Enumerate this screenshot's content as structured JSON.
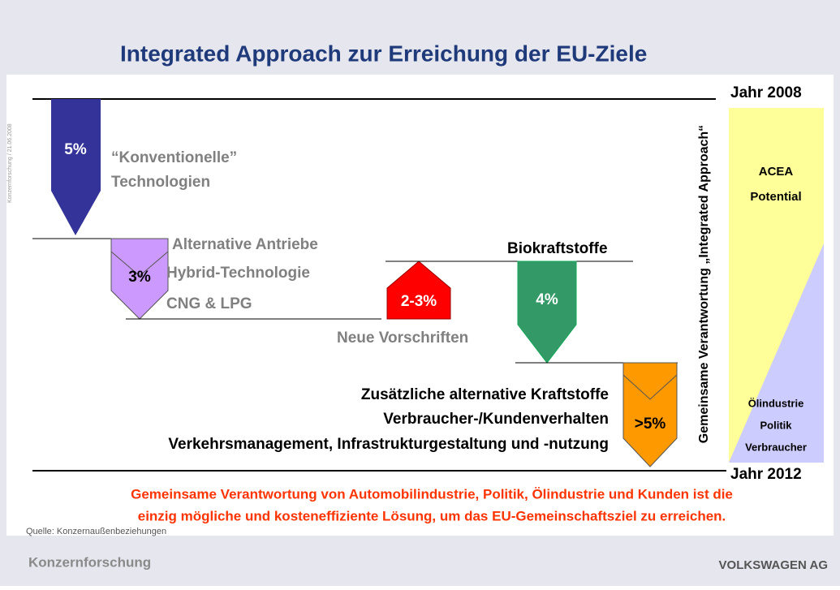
{
  "header": {
    "title": "Integrated Approach zur Erreichung der EU-Ziele",
    "side_note": "Konzernforschung / 21.06.2008"
  },
  "timeline": {
    "start": "Jahr 2008",
    "end": "Jahr 2012",
    "vertical_label": "Gemeinsame Verantwortung „Integrated Approach“"
  },
  "steps": [
    {
      "value": "5%",
      "labels": [
        "“Konventionelle”",
        "Technologien"
      ]
    },
    {
      "value": "3%",
      "labels": [
        "Alternative Antriebe",
        "Hybrid-Technologie",
        "CNG & LPG"
      ]
    },
    {
      "value": "2-3%",
      "labels": [
        "Neue Vorschriften"
      ]
    },
    {
      "value": "4%",
      "labels": [
        "Biokraftstoffe"
      ]
    },
    {
      "value": ">5%",
      "labels": [
        "Zusätzliche alternative Kraftstoffe",
        "Verbraucher-/Kundenverhalten",
        "Verkehrsmanagement, Infrastrukturgestaltung und -nutzung"
      ]
    }
  ],
  "panel": {
    "top": [
      "ACEA",
      "Potential"
    ],
    "bottom": [
      "Ölindustrie",
      "Politik",
      "Verbraucher"
    ]
  },
  "conclusion": [
    "Gemeinsame Verantwortung von Automobilindustrie, Politik, Ölindustrie und Kunden ist die",
    "einzig mögliche und kosteneffiziente Lösung, um das EU-Gemeinschaftsziel zu erreichen."
  ],
  "source": "Quelle: Konzernaußenbeziehungen",
  "footer": {
    "left": "Konzernforschung",
    "right": "VOLKSWAGEN AG"
  }
}
